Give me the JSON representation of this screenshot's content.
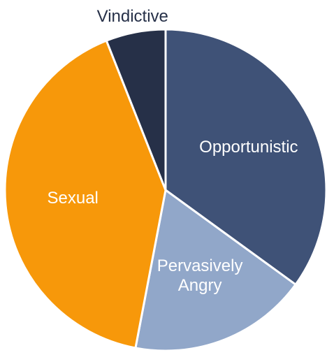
{
  "chart_data": {
    "type": "pie",
    "categories": [
      "Opportunistic",
      "Pervasively Angry",
      "Sexual",
      "Vindictive"
    ],
    "values": [
      35,
      18,
      41,
      6
    ],
    "colors": [
      "#3f5277",
      "#91a7c9",
      "#f7980a",
      "#263048"
    ]
  }
}
